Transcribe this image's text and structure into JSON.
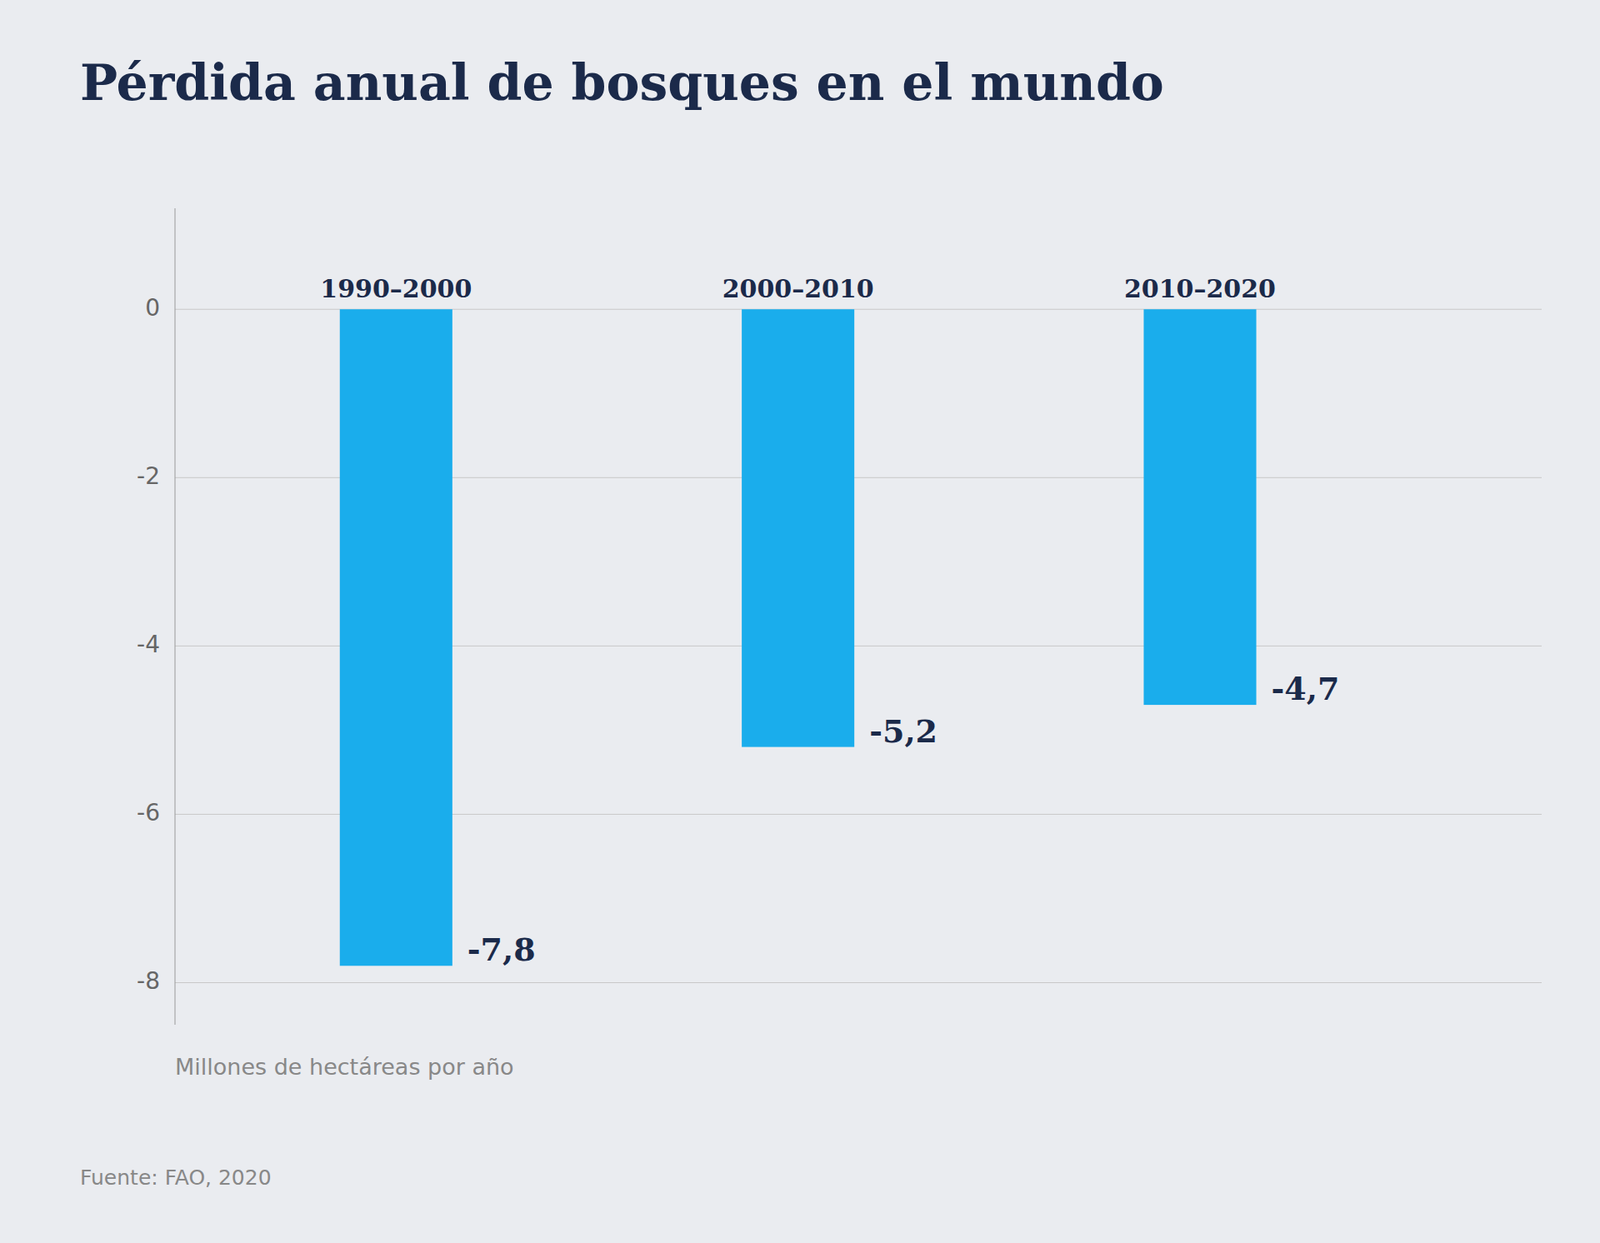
{
  "chart_data": {
    "type": "bar",
    "title": "Pérdida anual de bosques en el mundo",
    "categories": [
      "1990–2000",
      "2000–2010",
      "2010–2020"
    ],
    "values": [
      -7.8,
      -5.2,
      -4.7
    ],
    "value_labels": [
      "-7,8",
      "-5,2",
      "-4,7"
    ],
    "data_labels": true,
    "color": "#1AADEC",
    "ylabel": "Millones de hectáreas por año",
    "ylim": [
      -8.5,
      1.2
    ],
    "yticks": [
      0,
      -2,
      -4,
      -6,
      -8
    ],
    "grid": true,
    "source": "Fuente: FAO, 2020"
  }
}
